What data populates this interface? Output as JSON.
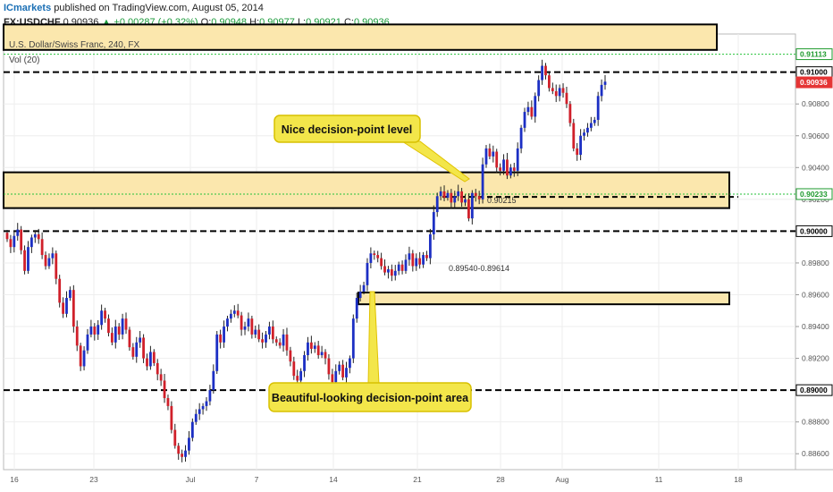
{
  "header": {
    "brand": "ICmarkets",
    "published": "published on TradingView.com, August 05, 2014",
    "symbol": "FX:USDCHF",
    "last": "0.90936",
    "change": "▲ +0.00287 (+0.32%)",
    "o_label": "O:",
    "o": "0.90948",
    "h_label": "H:",
    "h": "0.90977",
    "l_label": "L:",
    "l": "0.90921",
    "c_label": "C:",
    "c": "0.90936"
  },
  "chart_data": {
    "type": "candlestick",
    "title": "U.S. Dollar/Swiss Franc, 240, FX",
    "indicator": "Vol (20)",
    "ylim": [
      0.885,
      0.9124
    ],
    "y_ticks": [
      "0.91000",
      "0.90800",
      "0.90600",
      "0.90400",
      "0.90200",
      "0.90000",
      "0.89800",
      "0.89600",
      "0.89400",
      "0.89200",
      "0.89000",
      "0.88800",
      "0.88600"
    ],
    "x_ticks": [
      "16",
      "23",
      "Jul",
      "7",
      "14",
      "21",
      "28",
      "Aug",
      "11",
      "18"
    ],
    "price_badges": [
      {
        "label": "0.91113",
        "value": 0.91113,
        "bg": "#ffffff",
        "fg": "#1e9a2d"
      },
      {
        "label": "0.91000",
        "value": 0.91,
        "bg": "#ffffff",
        "fg": "#000000"
      },
      {
        "label": "0.90936",
        "value": 0.90936,
        "bg": "#e53535",
        "fg": "#ffffff"
      },
      {
        "label": "0.90233",
        "value": 0.90233,
        "bg": "#ffffff",
        "fg": "#1e9a2d"
      },
      {
        "label": "0.90000",
        "value": 0.9,
        "bg": "#ffffff",
        "fg": "#000000"
      },
      {
        "label": "0.89000",
        "value": 0.89,
        "bg": "#ffffff",
        "fg": "#000000"
      }
    ],
    "dashed_levels": [
      0.91,
      0.9,
      0.89
    ],
    "green_levels": [
      0.91113,
      0.90233
    ],
    "zones": [
      {
        "from": 0.90145,
        "to": 0.9037,
        "label": "0.90215",
        "label_value": 0.90215
      },
      {
        "from": 0.8954,
        "to": 0.89614,
        "label": "0.89540-0.89614"
      },
      {
        "from": 0.9114,
        "to": 0.913,
        "label": ""
      }
    ],
    "annotations": [
      {
        "text": "Nice decision-point level",
        "color": "#f3e64a"
      },
      {
        "text": "Beautiful-looking decision-point area",
        "color": "#f3e64a"
      }
    ],
    "colors": {
      "up": "#1c2fc4",
      "down": "#d0202a",
      "zone_fill": "#fbe7ad",
      "level": "#000000",
      "green": "#26c23a",
      "annotation": "#f3e64a"
    },
    "closes": [
      0.8995,
      0.899,
      0.8997,
      0.9001,
      0.8988,
      0.8975,
      0.899,
      0.8996,
      0.8998,
      0.8995,
      0.8985,
      0.8978,
      0.8983,
      0.8986,
      0.897,
      0.8955,
      0.8948,
      0.8958,
      0.8963,
      0.894,
      0.8928,
      0.8915,
      0.8925,
      0.8935,
      0.894,
      0.8935,
      0.8941,
      0.895,
      0.8945,
      0.8936,
      0.893,
      0.894,
      0.8935,
      0.8945,
      0.8938,
      0.8927,
      0.8921,
      0.893,
      0.8933,
      0.892,
      0.8915,
      0.8924,
      0.8917,
      0.891,
      0.8906,
      0.8895,
      0.889,
      0.8875,
      0.8865,
      0.886,
      0.8858,
      0.8862,
      0.887,
      0.888,
      0.8885,
      0.8888,
      0.889,
      0.8893,
      0.89,
      0.8912,
      0.8935,
      0.893,
      0.894,
      0.8945,
      0.8948,
      0.895,
      0.8947,
      0.8938,
      0.894,
      0.8945,
      0.8935,
      0.8938,
      0.8932,
      0.893,
      0.8935,
      0.894,
      0.8932,
      0.893,
      0.8928,
      0.8935,
      0.8925,
      0.8918,
      0.8909,
      0.8906,
      0.8912,
      0.8922,
      0.893,
      0.8926,
      0.8928,
      0.8922,
      0.8924,
      0.892,
      0.891,
      0.8905,
      0.8912,
      0.8916,
      0.8908,
      0.8914,
      0.892,
      0.8945,
      0.8958,
      0.8962,
      0.8966,
      0.898,
      0.8986,
      0.8985,
      0.8983,
      0.8978,
      0.8974,
      0.8976,
      0.8972,
      0.8975,
      0.8979,
      0.8975,
      0.8982,
      0.8986,
      0.8978,
      0.8983,
      0.8979,
      0.8985,
      0.8983,
      0.8998,
      0.9012,
      0.9022,
      0.9025,
      0.9021,
      0.9024,
      0.9018,
      0.9022,
      0.9025,
      0.9018,
      0.902,
      0.9008,
      0.9024,
      0.9022,
      0.902,
      0.9042,
      0.9052,
      0.9047,
      0.905,
      0.904,
      0.9038,
      0.9045,
      0.9035,
      0.904,
      0.9038,
      0.9052,
      0.9065,
      0.9075,
      0.9078,
      0.9072,
      0.9085,
      0.9095,
      0.9104,
      0.9098,
      0.909,
      0.9088,
      0.9085,
      0.909,
      0.9087,
      0.908,
      0.9068,
      0.9052,
      0.9048,
      0.906,
      0.9062,
      0.9065,
      0.9068,
      0.907,
      0.9085,
      0.9092,
      0.9094
    ]
  }
}
